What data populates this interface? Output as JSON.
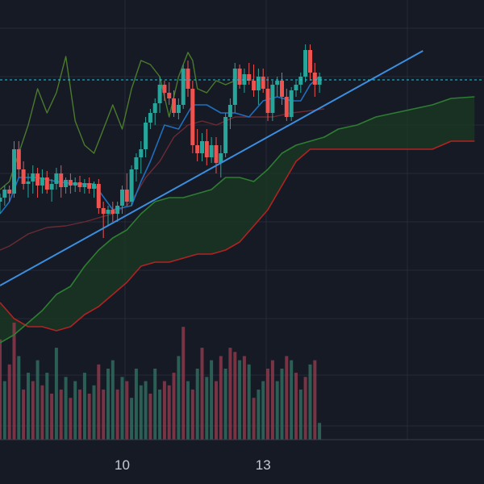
{
  "chart_data": {
    "type": "candlestick",
    "x_ticks": [
      {
        "x": 10,
        "label": "10"
      },
      {
        "x": 13,
        "label": "13"
      }
    ],
    "x_range": [
      7.4,
      17.7
    ],
    "price_range": [
      0,
      600
    ],
    "grid": true,
    "colors": {
      "background": "#161a25",
      "grid": "#262b36",
      "up": "#26a69a",
      "down": "#ef5350",
      "base_line": "#1f6fbf",
      "conversion_line": "#3d6e2a",
      "lagging_line": "#4a7a2c",
      "span_a": "#2e7d32",
      "span_b": "#b22222",
      "cloud_bull": "#1a3a22",
      "cloud_bear": "#3a1c22",
      "trendline": "#3b8ee0",
      "price_line": "#26c6da"
    },
    "current_price": 501,
    "trendline": {
      "x": [
        7.4,
        16.4
      ],
      "y": [
        246,
        537
      ]
    },
    "candles": [
      {
        "x": 7.4,
        "o": 350,
        "h": 360,
        "l": 335,
        "c": 355
      },
      {
        "x": 7.5,
        "o": 355,
        "h": 370,
        "l": 345,
        "c": 365
      },
      {
        "x": 7.6,
        "o": 365,
        "h": 370,
        "l": 350,
        "c": 360
      },
      {
        "x": 7.7,
        "o": 360,
        "h": 425,
        "l": 355,
        "c": 415
      },
      {
        "x": 7.8,
        "o": 415,
        "h": 425,
        "l": 380,
        "c": 390
      },
      {
        "x": 7.9,
        "o": 390,
        "h": 400,
        "l": 365,
        "c": 372
      },
      {
        "x": 8.0,
        "o": 372,
        "h": 385,
        "l": 355,
        "c": 375
      },
      {
        "x": 8.1,
        "o": 375,
        "h": 395,
        "l": 360,
        "c": 385
      },
      {
        "x": 8.2,
        "o": 385,
        "h": 392,
        "l": 355,
        "c": 370
      },
      {
        "x": 8.3,
        "o": 370,
        "h": 390,
        "l": 360,
        "c": 380
      },
      {
        "x": 8.4,
        "o": 380,
        "h": 388,
        "l": 360,
        "c": 365
      },
      {
        "x": 8.5,
        "o": 365,
        "h": 378,
        "l": 350,
        "c": 372
      },
      {
        "x": 8.6,
        "o": 372,
        "h": 392,
        "l": 365,
        "c": 385
      },
      {
        "x": 8.7,
        "o": 385,
        "h": 395,
        "l": 355,
        "c": 368
      },
      {
        "x": 8.8,
        "o": 368,
        "h": 380,
        "l": 360,
        "c": 377
      },
      {
        "x": 8.9,
        "o": 377,
        "h": 385,
        "l": 360,
        "c": 370
      },
      {
        "x": 9.0,
        "o": 370,
        "h": 380,
        "l": 362,
        "c": 374
      },
      {
        "x": 9.1,
        "o": 374,
        "h": 382,
        "l": 362,
        "c": 368
      },
      {
        "x": 9.2,
        "o": 368,
        "h": 378,
        "l": 360,
        "c": 373
      },
      {
        "x": 9.3,
        "o": 373,
        "h": 380,
        "l": 360,
        "c": 366
      },
      {
        "x": 9.4,
        "o": 366,
        "h": 375,
        "l": 355,
        "c": 372
      },
      {
        "x": 9.5,
        "o": 372,
        "h": 378,
        "l": 335,
        "c": 342
      },
      {
        "x": 9.6,
        "o": 342,
        "h": 350,
        "l": 305,
        "c": 335
      },
      {
        "x": 9.7,
        "o": 335,
        "h": 345,
        "l": 320,
        "c": 340
      },
      {
        "x": 9.8,
        "o": 340,
        "h": 350,
        "l": 325,
        "c": 335
      },
      {
        "x": 9.9,
        "o": 335,
        "h": 350,
        "l": 325,
        "c": 345
      },
      {
        "x": 10.0,
        "o": 345,
        "h": 370,
        "l": 335,
        "c": 365
      },
      {
        "x": 10.1,
        "o": 365,
        "h": 385,
        "l": 345,
        "c": 350
      },
      {
        "x": 10.2,
        "o": 350,
        "h": 395,
        "l": 345,
        "c": 390
      },
      {
        "x": 10.3,
        "o": 390,
        "h": 410,
        "l": 375,
        "c": 405
      },
      {
        "x": 10.4,
        "o": 405,
        "h": 425,
        "l": 385,
        "c": 415
      },
      {
        "x": 10.5,
        "o": 415,
        "h": 455,
        "l": 405,
        "c": 448
      },
      {
        "x": 10.6,
        "o": 448,
        "h": 465,
        "l": 440,
        "c": 460
      },
      {
        "x": 10.7,
        "o": 460,
        "h": 478,
        "l": 445,
        "c": 472
      },
      {
        "x": 10.8,
        "o": 472,
        "h": 505,
        "l": 460,
        "c": 495
      },
      {
        "x": 10.9,
        "o": 495,
        "h": 500,
        "l": 475,
        "c": 485
      },
      {
        "x": 11.0,
        "o": 485,
        "h": 498,
        "l": 470,
        "c": 478
      },
      {
        "x": 11.1,
        "o": 478,
        "h": 488,
        "l": 455,
        "c": 460
      },
      {
        "x": 11.2,
        "o": 460,
        "h": 478,
        "l": 452,
        "c": 470
      },
      {
        "x": 11.3,
        "o": 470,
        "h": 520,
        "l": 465,
        "c": 515
      },
      {
        "x": 11.4,
        "o": 515,
        "h": 525,
        "l": 480,
        "c": 490
      },
      {
        "x": 11.5,
        "o": 490,
        "h": 500,
        "l": 410,
        "c": 420
      },
      {
        "x": 11.6,
        "o": 420,
        "h": 440,
        "l": 400,
        "c": 410
      },
      {
        "x": 11.7,
        "o": 410,
        "h": 435,
        "l": 400,
        "c": 425
      },
      {
        "x": 11.8,
        "o": 425,
        "h": 440,
        "l": 395,
        "c": 405
      },
      {
        "x": 11.9,
        "o": 405,
        "h": 430,
        "l": 398,
        "c": 420
      },
      {
        "x": 12.0,
        "o": 420,
        "h": 430,
        "l": 385,
        "c": 398
      },
      {
        "x": 12.1,
        "o": 398,
        "h": 420,
        "l": 380,
        "c": 410
      },
      {
        "x": 12.2,
        "o": 410,
        "h": 460,
        "l": 405,
        "c": 455
      },
      {
        "x": 12.3,
        "o": 455,
        "h": 478,
        "l": 440,
        "c": 470
      },
      {
        "x": 12.4,
        "o": 470,
        "h": 522,
        "l": 460,
        "c": 515
      },
      {
        "x": 12.5,
        "o": 515,
        "h": 520,
        "l": 490,
        "c": 495
      },
      {
        "x": 12.6,
        "o": 495,
        "h": 515,
        "l": 485,
        "c": 508
      },
      {
        "x": 12.7,
        "o": 508,
        "h": 522,
        "l": 495,
        "c": 500
      },
      {
        "x": 12.8,
        "o": 500,
        "h": 520,
        "l": 480,
        "c": 488
      },
      {
        "x": 12.9,
        "o": 488,
        "h": 515,
        "l": 470,
        "c": 505
      },
      {
        "x": 13.0,
        "o": 505,
        "h": 515,
        "l": 485,
        "c": 490
      },
      {
        "x": 13.1,
        "o": 490,
        "h": 505,
        "l": 450,
        "c": 460
      },
      {
        "x": 13.2,
        "o": 460,
        "h": 500,
        "l": 450,
        "c": 495
      },
      {
        "x": 13.3,
        "o": 495,
        "h": 505,
        "l": 480,
        "c": 500
      },
      {
        "x": 13.4,
        "o": 500,
        "h": 510,
        "l": 470,
        "c": 480
      },
      {
        "x": 13.5,
        "o": 480,
        "h": 490,
        "l": 450,
        "c": 455
      },
      {
        "x": 13.6,
        "o": 455,
        "h": 492,
        "l": 450,
        "c": 488
      },
      {
        "x": 13.7,
        "o": 488,
        "h": 500,
        "l": 480,
        "c": 495
      },
      {
        "x": 13.8,
        "o": 495,
        "h": 510,
        "l": 485,
        "c": 505
      },
      {
        "x": 13.9,
        "o": 505,
        "h": 545,
        "l": 498,
        "c": 538
      },
      {
        "x": 14.0,
        "o": 538,
        "h": 545,
        "l": 500,
        "c": 510
      },
      {
        "x": 14.1,
        "o": 510,
        "h": 522,
        "l": 480,
        "c": 495
      },
      {
        "x": 14.2,
        "o": 495,
        "h": 510,
        "l": 485,
        "c": 505
      }
    ],
    "volumes": [
      {
        "x": 7.4,
        "v": 120,
        "d": "down"
      },
      {
        "x": 7.5,
        "v": 70,
        "d": "up"
      },
      {
        "x": 7.6,
        "v": 90,
        "d": "down"
      },
      {
        "x": 7.7,
        "v": 140,
        "d": "down"
      },
      {
        "x": 7.8,
        "v": 100,
        "d": "up"
      },
      {
        "x": 7.9,
        "v": 60,
        "d": "down"
      },
      {
        "x": 8.0,
        "v": 80,
        "d": "up"
      },
      {
        "x": 8.1,
        "v": 70,
        "d": "down"
      },
      {
        "x": 8.2,
        "v": 95,
        "d": "up"
      },
      {
        "x": 8.3,
        "v": 65,
        "d": "down"
      },
      {
        "x": 8.4,
        "v": 80,
        "d": "up"
      },
      {
        "x": 8.5,
        "v": 55,
        "d": "down"
      },
      {
        "x": 8.6,
        "v": 110,
        "d": "up"
      },
      {
        "x": 8.7,
        "v": 60,
        "d": "down"
      },
      {
        "x": 8.8,
        "v": 75,
        "d": "up"
      },
      {
        "x": 8.9,
        "v": 50,
        "d": "down"
      },
      {
        "x": 9.0,
        "v": 70,
        "d": "up"
      },
      {
        "x": 9.1,
        "v": 60,
        "d": "down"
      },
      {
        "x": 9.2,
        "v": 80,
        "d": "up"
      },
      {
        "x": 9.3,
        "v": 55,
        "d": "down"
      },
      {
        "x": 9.4,
        "v": 65,
        "d": "up"
      },
      {
        "x": 9.5,
        "v": 90,
        "d": "down"
      },
      {
        "x": 9.6,
        "v": 60,
        "d": "down"
      },
      {
        "x": 9.7,
        "v": 85,
        "d": "up"
      },
      {
        "x": 9.8,
        "v": 95,
        "d": "up"
      },
      {
        "x": 9.9,
        "v": 60,
        "d": "down"
      },
      {
        "x": 10.0,
        "v": 75,
        "d": "up"
      },
      {
        "x": 10.1,
        "v": 70,
        "d": "down"
      },
      {
        "x": 10.2,
        "v": 50,
        "d": "up"
      },
      {
        "x": 10.3,
        "v": 85,
        "d": "up"
      },
      {
        "x": 10.4,
        "v": 65,
        "d": "up"
      },
      {
        "x": 10.5,
        "v": 70,
        "d": "up"
      },
      {
        "x": 10.6,
        "v": 55,
        "d": "down"
      },
      {
        "x": 10.7,
        "v": 85,
        "d": "up"
      },
      {
        "x": 10.8,
        "v": 60,
        "d": "up"
      },
      {
        "x": 10.9,
        "v": 70,
        "d": "down"
      },
      {
        "x": 11.0,
        "v": 65,
        "d": "down"
      },
      {
        "x": 11.1,
        "v": 80,
        "d": "down"
      },
      {
        "x": 11.2,
        "v": 100,
        "d": "up"
      },
      {
        "x": 11.3,
        "v": 135,
        "d": "down"
      },
      {
        "x": 11.4,
        "v": 70,
        "d": "up"
      },
      {
        "x": 11.5,
        "v": 60,
        "d": "down"
      },
      {
        "x": 11.6,
        "v": 85,
        "d": "up"
      },
      {
        "x": 11.7,
        "v": 110,
        "d": "down"
      },
      {
        "x": 11.8,
        "v": 75,
        "d": "up"
      },
      {
        "x": 11.9,
        "v": 95,
        "d": "up"
      },
      {
        "x": 12.0,
        "v": 70,
        "d": "down"
      },
      {
        "x": 12.1,
        "v": 100,
        "d": "down"
      },
      {
        "x": 12.2,
        "v": 85,
        "d": "up"
      },
      {
        "x": 12.3,
        "v": 110,
        "d": "down"
      },
      {
        "x": 12.4,
        "v": 105,
        "d": "down"
      },
      {
        "x": 12.5,
        "v": 95,
        "d": "up"
      },
      {
        "x": 12.6,
        "v": 100,
        "d": "down"
      },
      {
        "x": 12.7,
        "v": 90,
        "d": "up"
      },
      {
        "x": 12.8,
        "v": 50,
        "d": "down"
      },
      {
        "x": 12.9,
        "v": 60,
        "d": "up"
      },
      {
        "x": 13.0,
        "v": 70,
        "d": "up"
      },
      {
        "x": 13.1,
        "v": 85,
        "d": "down"
      },
      {
        "x": 13.2,
        "v": 95,
        "d": "down"
      },
      {
        "x": 13.3,
        "v": 70,
        "d": "up"
      },
      {
        "x": 13.4,
        "v": 85,
        "d": "up"
      },
      {
        "x": 13.5,
        "v": 100,
        "d": "down"
      },
      {
        "x": 13.6,
        "v": 95,
        "d": "up"
      },
      {
        "x": 13.7,
        "v": 80,
        "d": "down"
      },
      {
        "x": 13.8,
        "v": 60,
        "d": "up"
      },
      {
        "x": 13.9,
        "v": 75,
        "d": "down"
      },
      {
        "x": 14.0,
        "v": 90,
        "d": "up"
      },
      {
        "x": 14.1,
        "v": 95,
        "d": "down"
      },
      {
        "x": 14.2,
        "v": 20,
        "d": "up"
      }
    ],
    "volume_range": [
      0,
      140
    ],
    "ichimoku": {
      "base_line": {
        "x": [
          7.4,
          7.6,
          7.8,
          8.2,
          8.6,
          9.0,
          9.4,
          9.8,
          10.2,
          10.4,
          10.6,
          10.9,
          11.2,
          11.5,
          11.8,
          12.1,
          12.4,
          12.7,
          13.0,
          13.3,
          13.6,
          13.8,
          14.0,
          14.2
        ],
        "y": [
          335,
          350,
          380,
          380,
          375,
          372,
          372,
          340,
          345,
          375,
          400,
          445,
          440,
          470,
          470,
          460,
          460,
          455,
          475,
          480,
          475,
          475,
          495,
          505
        ]
      },
      "conversion_line": {
        "x": [
          7.4,
          7.6,
          8.0,
          8.4,
          8.8,
          9.2,
          9.5,
          9.8,
          10.1,
          10.3,
          10.5,
          10.8,
          11.1,
          11.4,
          11.7,
          12.0,
          12.4,
          12.8,
          13.2,
          13.6,
          13.9,
          14.3
        ],
        "y": [
          290,
          295,
          310,
          318,
          320,
          325,
          330,
          335,
          345,
          360,
          380,
          400,
          430,
          445,
          450,
          445,
          455,
          455,
          455,
          460,
          462,
          465
        ]
      },
      "lagging_span": {
        "x": [
          7.4,
          7.6,
          7.8,
          8.0,
          8.2,
          8.4,
          8.6,
          8.8,
          9.0,
          9.2,
          9.4,
          9.6,
          9.8,
          10.0,
          10.2,
          10.4,
          10.6,
          10.8,
          11.0,
          11.2,
          11.4,
          11.5,
          11.6,
          11.8,
          12.0,
          12.2,
          12.4
        ],
        "y": [
          365,
          375,
          410,
          445,
          490,
          460,
          485,
          530,
          450,
          420,
          410,
          440,
          470,
          440,
          490,
          525,
          520,
          505,
          455,
          505,
          535,
          525,
          490,
          485,
          500,
          495,
          500
        ]
      },
      "span_a": {
        "x": [
          7.4,
          7.7,
          8.0,
          8.3,
          8.6,
          8.9,
          9.2,
          9.5,
          9.8,
          10.1,
          10.4,
          10.7,
          11.0,
          11.3,
          11.6,
          11.9,
          12.2,
          12.5,
          12.8,
          13.1,
          13.4,
          13.7,
          14.0,
          14.3,
          14.6,
          15.0,
          15.4,
          15.8,
          16.2,
          16.6,
          17.0,
          17.5
        ],
        "y": [
          175,
          185,
          200,
          215,
          235,
          245,
          270,
          290,
          305,
          315,
          335,
          350,
          355,
          355,
          360,
          365,
          380,
          380,
          375,
          390,
          410,
          420,
          425,
          430,
          440,
          445,
          455,
          460,
          465,
          470,
          478,
          480
        ]
      },
      "span_b": {
        "x": [
          7.4,
          7.7,
          8.0,
          8.3,
          8.6,
          8.9,
          9.2,
          9.5,
          9.8,
          10.1,
          10.4,
          10.7,
          11.0,
          11.3,
          11.6,
          11.9,
          12.2,
          12.5,
          12.8,
          13.1,
          13.4,
          13.7,
          14.0,
          14.3,
          14.6,
          15.0,
          15.4,
          15.8,
          16.2,
          16.6,
          17.0,
          17.5
        ],
        "y": [
          225,
          205,
          195,
          195,
          190,
          195,
          210,
          220,
          235,
          250,
          270,
          275,
          275,
          280,
          285,
          285,
          290,
          300,
          320,
          340,
          370,
          400,
          415,
          415,
          415,
          415,
          415,
          415,
          415,
          415,
          425,
          425
        ]
      }
    }
  }
}
